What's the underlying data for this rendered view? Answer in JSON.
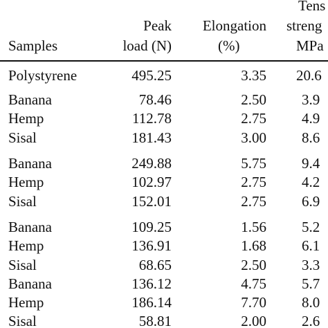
{
  "table": {
    "headers": {
      "samples": "Samples",
      "peak_line1": "Peak",
      "peak_line2": "load (N)",
      "elong_line1": "Elongation",
      "elong_line2": "(%)",
      "tens_line1": "Tens",
      "tens_line2": "streng",
      "tens_line3": "MPa"
    },
    "rows": [
      {
        "sample": "Polystyrene",
        "peak": "495.25",
        "elong": "3.35",
        "tens": "20.6"
      },
      {
        "sample": "Banana",
        "peak": "78.46",
        "elong": "2.50",
        "tens": "3.9"
      },
      {
        "sample": "Hemp",
        "peak": "112.78",
        "elong": "2.75",
        "tens": "4.9"
      },
      {
        "sample": "Sisal",
        "peak": "181.43",
        "elong": "3.00",
        "tens": "8.6"
      },
      {
        "sample": "Banana",
        "peak": "249.88",
        "elong": "5.75",
        "tens": "9.4"
      },
      {
        "sample": "Hemp",
        "peak": "102.97",
        "elong": "2.75",
        "tens": "4.2"
      },
      {
        "sample": "Sisal",
        "peak": "152.01",
        "elong": "2.75",
        "tens": "6.9"
      },
      {
        "sample": "Banana",
        "peak": "109.25",
        "elong": "1.56",
        "tens": "5.2"
      },
      {
        "sample": "Hemp",
        "peak": "136.91",
        "elong": "1.68",
        "tens": "6.1"
      },
      {
        "sample": "Sisal",
        "peak": "68.65",
        "elong": "2.50",
        "tens": "3.3"
      },
      {
        "sample": "Banana",
        "peak": "136.12",
        "elong": "4.75",
        "tens": "5.7"
      },
      {
        "sample": "Hemp",
        "peak": "186.14",
        "elong": "7.70",
        "tens": "8.0"
      },
      {
        "sample": "Sisal",
        "peak": "58.81",
        "elong": "2.00",
        "tens": "2.6"
      }
    ]
  }
}
